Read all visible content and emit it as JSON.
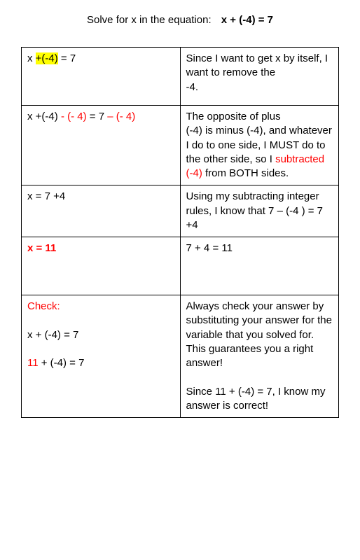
{
  "header": {
    "prompt": "Solve for x in the equation:",
    "equation": "x + (-4) = 7"
  },
  "rows": [
    {
      "left": {
        "pre": "x ",
        "hl": "+(-4)",
        "post": " = 7"
      },
      "right": "Since I want to get x by itself, I want to remove the\n-4."
    },
    {
      "left": {
        "plain1": "x +(-4) ",
        "red1": "- (- 4)",
        "plain2": " = 7 ",
        "red2": "– (- 4)"
      },
      "right": {
        "line1": "The opposite of plus",
        "line2": " (-4)  is minus (-4), and whatever I do to one side, I MUST do to the other side, so I ",
        "red": "subtracted\n(-4)",
        "line3": " from BOTH sides."
      }
    },
    {
      "left": "x = 7 +4",
      "right": "Using my subtracting integer rules, I know that 7 – (-4 ) = 7 +4"
    },
    {
      "left": "x = 11",
      "right": "7 + 4 = 11"
    },
    {
      "left": {
        "check": "Check:",
        "eq1_pre": "x + (-4) = 7",
        "eq2_red": "11",
        "eq2_post": " + (-4) = 7"
      },
      "right": {
        "para1": "Always check your answer by substituting your answer for the variable that you solved for.  This guarantees you a right answer!",
        "para2": "Since 11 + (-4) = 7, I know my answer is correct!"
      }
    }
  ]
}
